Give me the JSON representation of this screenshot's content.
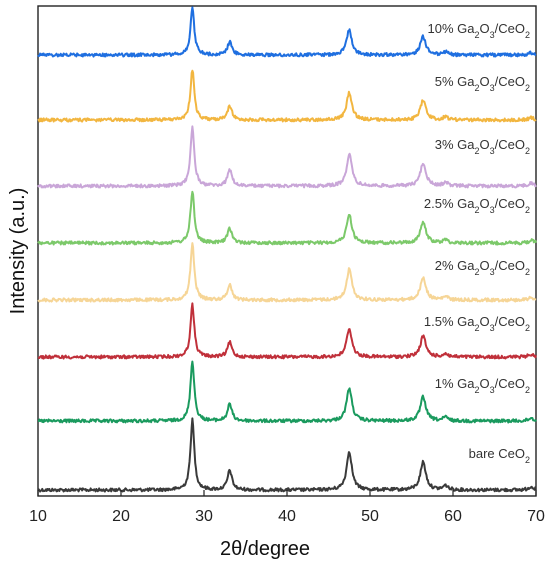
{
  "chart_data": {
    "type": "line",
    "xlabel": "2θ/degree",
    "ylabel": "Intensity (a.u.)",
    "xlim": [
      10,
      70
    ],
    "xticks": [
      10,
      20,
      30,
      40,
      50,
      60,
      70
    ],
    "grid": false,
    "legend": "none",
    "peaks": [
      {
        "x": 28.6,
        "h": 1.0,
        "w": 0.28
      },
      {
        "x": 33.1,
        "h": 0.28,
        "w": 0.32
      },
      {
        "x": 47.5,
        "h": 0.55,
        "w": 0.38
      },
      {
        "x": 56.4,
        "h": 0.4,
        "w": 0.4
      },
      {
        "x": 59.1,
        "h": 0.06,
        "w": 0.35
      },
      {
        "x": 69.4,
        "h": 0.05,
        "w": 0.35
      }
    ],
    "series": [
      {
        "name": "bare CeO2",
        "label": {
          "main": "bare CeO",
          "sub": "2",
          "rest": ""
        },
        "color": "#3a3a3a",
        "main_peak_height": 70
      },
      {
        "name": "1% Ga2O3/CeO2",
        "label": {
          "main": "1% Ga",
          "sub1": "2",
          "mid": "O",
          "sub2": "3",
          "tail": "/CeO",
          "sub3": "2"
        },
        "color": "#1a9a5e",
        "main_peak_height": 60
      },
      {
        "name": "1.5% Ga2O3/CeO2",
        "label": {
          "main": "1.5% Ga",
          "sub1": "2",
          "mid": "O",
          "sub2": "3",
          "tail": "/CeO",
          "sub3": "2"
        },
        "color": "#c0303a",
        "main_peak_height": 52
      },
      {
        "name": "2% Ga2O3/CeO2",
        "label": {
          "main": "2% Ga",
          "sub1": "2",
          "mid": "O",
          "sub2": "3",
          "tail": "/CeO",
          "sub3": "2"
        },
        "color": "#f6d596",
        "main_peak_height": 56
      },
      {
        "name": "2.5% Ga2O3/CeO2",
        "label": {
          "main": "2.5% Ga",
          "sub1": "2",
          "mid": "O",
          "sub2": "3",
          "tail": "/CeO",
          "sub3": "2"
        },
        "color": "#7cc96a",
        "main_peak_height": 52
      },
      {
        "name": "3% Ga2O3/CeO2",
        "label": {
          "main": "3% Ga",
          "sub1": "2",
          "mid": "O",
          "sub2": "3",
          "tail": "/CeO",
          "sub3": "2"
        },
        "color": "#c9a6d8",
        "main_peak_height": 58
      },
      {
        "name": "5% Ga2O3/CeO2",
        "label": {
          "main": "5% Ga",
          "sub1": "2",
          "mid": "O",
          "sub2": "3",
          "tail": "/CeO",
          "sub3": "2"
        },
        "color": "#f2b640",
        "main_peak_height": 50
      },
      {
        "name": "10% Ga2O3/CeO2",
        "label": {
          "main": "10% Ga",
          "sub1": "2",
          "mid": "O",
          "sub2": "3",
          "tail": "/CeO",
          "sub3": "2"
        },
        "color": "#1f6fe0",
        "main_peak_height": 46
      }
    ]
  }
}
